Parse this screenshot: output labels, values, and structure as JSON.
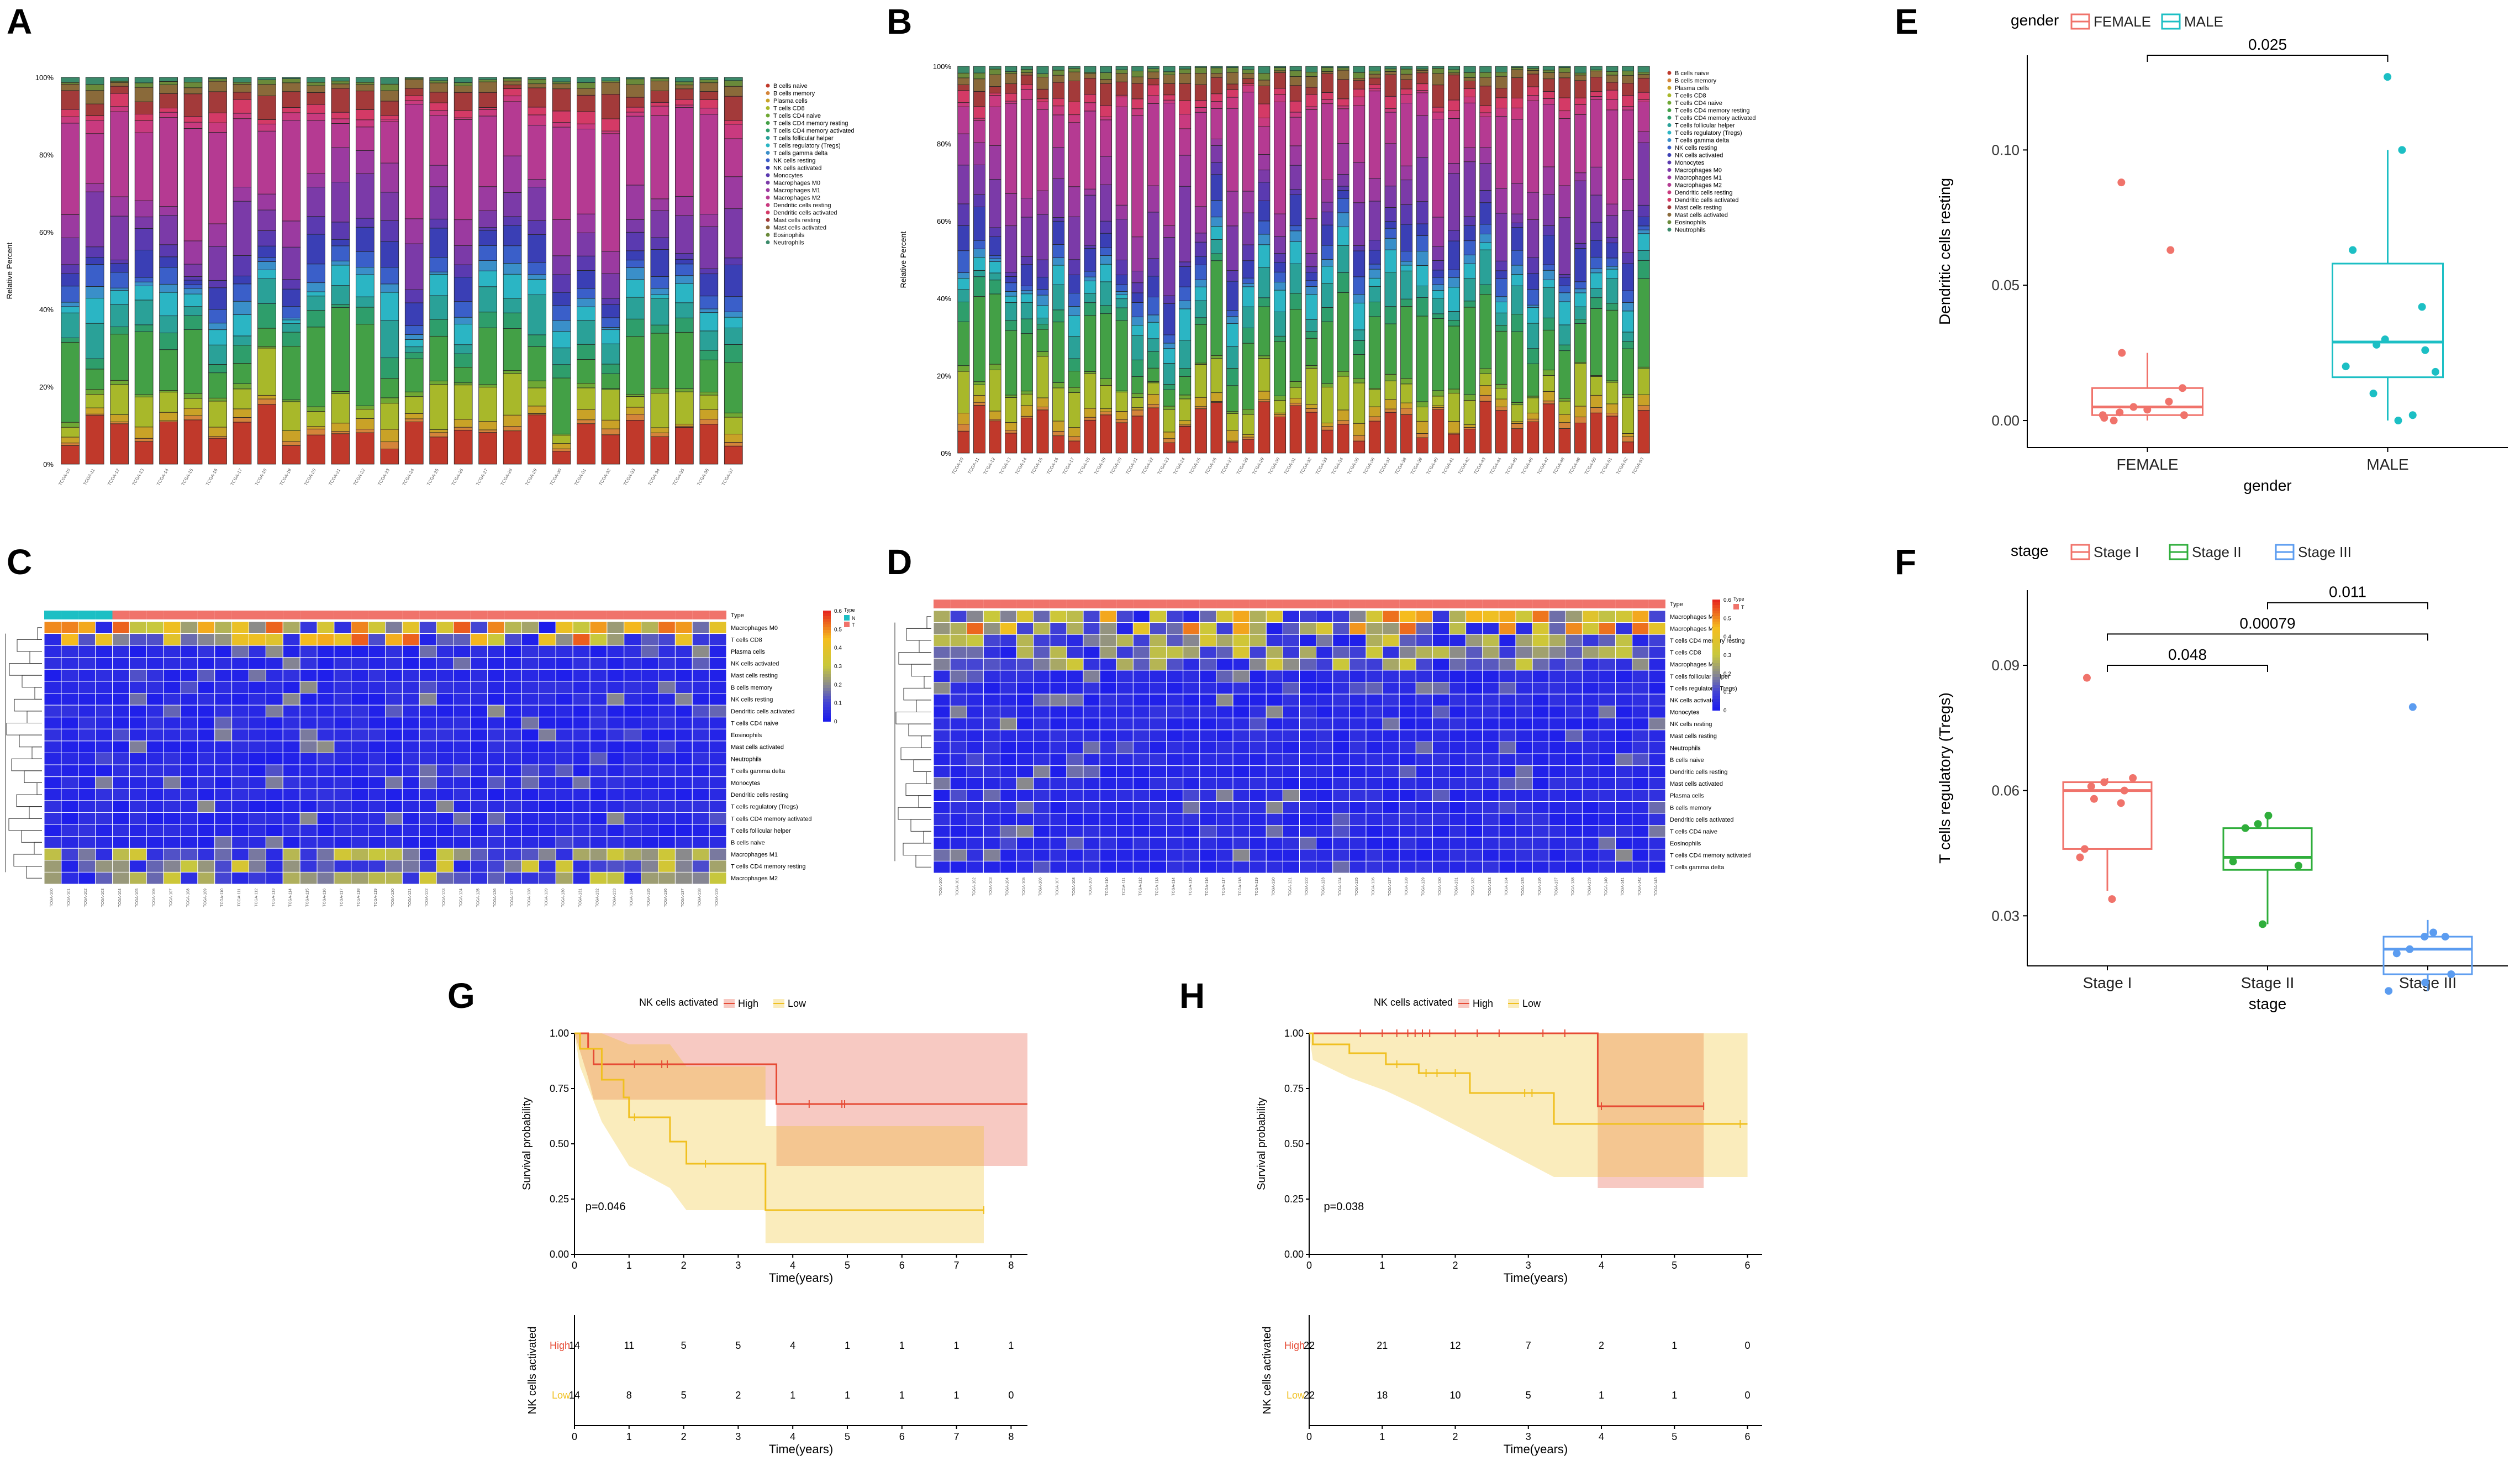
{
  "panel_labels": [
    "A",
    "B",
    "C",
    "D",
    "E",
    "F",
    "G",
    "H"
  ],
  "colors": {
    "female": "#f0736b",
    "male": "#1cbfc4",
    "stage1": "#f0736b",
    "stage2": "#2fae3b",
    "stage3": "#5b9cf0",
    "km_high": "#e64b35",
    "km_low": "#f0c020",
    "cells": [
      "#c0392b",
      "#d4843a",
      "#c9a227",
      "#a8b82a",
      "#6fa834",
      "#43a046",
      "#2e9e6b",
      "#2aa198",
      "#2bb5c4",
      "#3a8fc9",
      "#3a5fc9",
      "#3a3fb5",
      "#5a3ab0",
      "#7b3aa8",
      "#9b3aa0",
      "#b53a92",
      "#c93a7f",
      "#d43a66",
      "#a33a3a",
      "#8a6a3a",
      "#6a8a3a",
      "#3a8a6a"
    ]
  },
  "chart_data": [
    {
      "id": "A",
      "type": "bar",
      "subtype": "stacked-percent",
      "ylabel": "Relative Percent",
      "yticks": [
        "0%",
        "20%",
        "40%",
        "60%",
        "80%",
        "100%"
      ],
      "n_samples": 28,
      "legend": [
        "B cells naive",
        "B cells memory",
        "Plasma cells",
        "T cells CD8",
        "T cells CD4 naive",
        "T cells CD4 memory resting",
        "T cells CD4 memory activated",
        "T cells follicular helper",
        "T cells regulatory (Tregs)",
        "T cells gamma delta",
        "NK cells resting",
        "NK cells activated",
        "Monocytes",
        "Macrophages M0",
        "Macrophages M1",
        "Macrophages M2",
        "Dendritic cells resting",
        "Dendritic cells activated",
        "Mast cells resting",
        "Mast cells activated",
        "Eosinophils",
        "Neutrophils"
      ]
    },
    {
      "id": "B",
      "type": "bar",
      "subtype": "stacked-percent",
      "ylabel": "Relative Percent",
      "yticks": [
        "0%",
        "20%",
        "40%",
        "60%",
        "80%",
        "100%"
      ],
      "n_samples": 44,
      "legend": [
        "B cells naive",
        "B cells memory",
        "Plasma cells",
        "T cells CD8",
        "T cells CD4 naive",
        "T cells CD4 memory resting",
        "T cells CD4 memory activated",
        "T cells follicular helper",
        "T cells regulatory (Tregs)",
        "T cells gamma delta",
        "NK cells resting",
        "NK cells activated",
        "Monocytes",
        "Macrophages M0",
        "Macrophages M1",
        "Macrophages M2",
        "Dendritic cells resting",
        "Dendritic cells activated",
        "Mast cells resting",
        "Mast cells activated",
        "Eosinophils",
        "Neutrophils"
      ]
    },
    {
      "id": "C",
      "type": "heatmap",
      "annotation_title": "Type",
      "annotation_legend": [
        "N",
        "T"
      ],
      "scale": [
        "0.6",
        "0.5",
        "0.4",
        "0.3",
        "0.2",
        "0.1",
        "0"
      ],
      "n_cols": 40,
      "rows": [
        "Macrophages M0",
        "T cells CD8",
        "Plasma cells",
        "NK cells activated",
        "Mast cells resting",
        "B cells memory",
        "NK cells resting",
        "Dendritic cells activated",
        "T cells CD4 naive",
        "Eosinophils",
        "Mast cells activated",
        "Neutrophils",
        "T cells gamma delta",
        "Monocytes",
        "Dendritic cells resting",
        "T cells regulatory (Tregs)",
        "T cells CD4 memory activated",
        "T cells follicular helper",
        "B cells naive",
        "Macrophages M1",
        "T cells CD4 memory resting",
        "Macrophages M2"
      ]
    },
    {
      "id": "D",
      "type": "heatmap",
      "annotation_title": "Type",
      "annotation_legend": [
        "T"
      ],
      "scale": [
        "0.6",
        "0.5",
        "0.4",
        "0.3",
        "0.2",
        "0.1",
        "0"
      ],
      "n_cols": 44,
      "rows": [
        "Macrophages M2",
        "Macrophages M0",
        "T cells CD4 memory resting",
        "T cells CD8",
        "Macrophages M1",
        "T cells follicular helper",
        "T cells regulatory (Tregs)",
        "NK cells activated",
        "Monocytes",
        "NK cells resting",
        "Mast cells resting",
        "Neutrophils",
        "B cells naive",
        "Dendritic cells resting",
        "Mast cells activated",
        "Plasma cells",
        "B cells memory",
        "Dendritic cells activated",
        "T cells CD4 naive",
        "Eosinophils",
        "T cells CD4 memory activated",
        "T cells gamma delta"
      ]
    },
    {
      "id": "E",
      "type": "scatter",
      "subtype": "boxplot",
      "legend_title": "gender",
      "legend": [
        "FEMALE",
        "MALE"
      ],
      "categories": [
        "FEMALE",
        "MALE"
      ],
      "xlabel": "gender",
      "ylabel": "Dendritic cells resting",
      "ylim": [
        -0.01,
        0.135
      ],
      "yticks": [
        0.0,
        0.05,
        0.1
      ],
      "ytick_labels": [
        "0.00",
        "0.05",
        "0.10"
      ],
      "boxes": [
        {
          "name": "FEMALE",
          "q1": 0.002,
          "median": 0.005,
          "q3": 0.012,
          "wlow": 0.0,
          "whigh": 0.025
        },
        {
          "name": "MALE",
          "q1": 0.016,
          "median": 0.029,
          "q3": 0.058,
          "wlow": 0.0,
          "whigh": 0.1
        }
      ],
      "points": [
        {
          "group": "FEMALE",
          "values": [
            0.088,
            0.063,
            0.025,
            0.012,
            0.007,
            0.005,
            0.004,
            0.003,
            0.002,
            0.002,
            0.001,
            0.0
          ]
        },
        {
          "group": "MALE",
          "values": [
            0.127,
            0.1,
            0.063,
            0.042,
            0.03,
            0.028,
            0.026,
            0.02,
            0.018,
            0.01,
            0.002,
            0.0
          ]
        }
      ],
      "comparisons": [
        {
          "pair": [
            "FEMALE",
            "MALE"
          ],
          "p": "0.025",
          "y": 0.135
        }
      ]
    },
    {
      "id": "F",
      "type": "scatter",
      "subtype": "boxplot",
      "legend_title": "stage",
      "legend": [
        "Stage I",
        "Stage II",
        "Stage III"
      ],
      "categories": [
        "Stage I",
        "Stage II",
        "Stage III"
      ],
      "xlabel": "stage",
      "ylabel": "T cells regulatory (Tregs)",
      "ylim": [
        0.018,
        0.108
      ],
      "yticks": [
        0.03,
        0.06,
        0.09
      ],
      "ytick_labels": [
        "0.03",
        "0.06",
        "0.09"
      ],
      "boxes": [
        {
          "name": "Stage I",
          "q1": 0.046,
          "median": 0.06,
          "q3": 0.062,
          "wlow": 0.036,
          "whigh": 0.063
        },
        {
          "name": "Stage II",
          "q1": 0.041,
          "median": 0.044,
          "q3": 0.051,
          "wlow": 0.028,
          "whigh": 0.054
        },
        {
          "name": "Stage III",
          "q1": 0.016,
          "median": 0.022,
          "q3": 0.025,
          "wlow": 0.012,
          "whigh": 0.029
        }
      ],
      "points": [
        {
          "group": "Stage I",
          "values": [
            0.087,
            0.063,
            0.062,
            0.061,
            0.06,
            0.058,
            0.057,
            0.046,
            0.044,
            0.034
          ]
        },
        {
          "group": "Stage II",
          "values": [
            0.054,
            0.052,
            0.051,
            0.043,
            0.042,
            0.028
          ]
        },
        {
          "group": "Stage III",
          "values": [
            0.08,
            0.026,
            0.025,
            0.025,
            0.022,
            0.021,
            0.016,
            0.014,
            0.012
          ]
        }
      ],
      "comparisons": [
        {
          "pair": [
            "Stage II",
            "Stage III"
          ],
          "p": "0.011",
          "y": 0.105
        },
        {
          "pair": [
            "Stage I",
            "Stage III"
          ],
          "p": "0.00079",
          "y": 0.0975
        },
        {
          "pair": [
            "Stage I",
            "Stage II"
          ],
          "p": "0.048",
          "y": 0.09
        }
      ]
    },
    {
      "id": "G",
      "type": "line",
      "subtype": "kaplan-meier",
      "legend_title": "NK cells activated",
      "legend": [
        "High",
        "Low"
      ],
      "xlabel": "Time(years)",
      "ylabel": "Survival probability",
      "xlim": [
        0,
        8.3
      ],
      "ylim": [
        0,
        1
      ],
      "xticks": [
        0,
        1,
        2,
        3,
        4,
        5,
        6,
        7,
        8
      ],
      "yticks": [
        "0.00",
        "0.25",
        "0.50",
        "0.75",
        "1.00"
      ],
      "pvalue": "p=0.046",
      "series": [
        {
          "name": "High",
          "steps": [
            [
              0,
              1.0
            ],
            [
              0.25,
              0.93
            ],
            [
              0.35,
              0.86
            ],
            [
              3.7,
              0.86
            ],
            [
              3.7,
              0.68
            ],
            [
              8.3,
              0.68
            ]
          ],
          "ci_upper": [
            [
              0,
              1.0
            ],
            [
              0.35,
              1.0
            ],
            [
              3.7,
              1.0
            ],
            [
              8.3,
              1.0
            ]
          ],
          "ci_lower": [
            [
              0,
              1.0
            ],
            [
              0.25,
              0.8
            ],
            [
              0.35,
              0.7
            ],
            [
              3.7,
              0.7
            ],
            [
              3.7,
              0.4
            ],
            [
              8.3,
              0.4
            ]
          ],
          "censor": [
            [
              1.1,
              0.86
            ],
            [
              1.6,
              0.86
            ],
            [
              1.7,
              0.86
            ],
            [
              4.3,
              0.68
            ],
            [
              4.9,
              0.68
            ],
            [
              4.95,
              0.68
            ]
          ]
        },
        {
          "name": "Low",
          "steps": [
            [
              0,
              1.0
            ],
            [
              0.1,
              0.93
            ],
            [
              0.5,
              0.79
            ],
            [
              0.9,
              0.71
            ],
            [
              1.0,
              0.62
            ],
            [
              1.75,
              0.62
            ],
            [
              1.75,
              0.51
            ],
            [
              2.05,
              0.51
            ],
            [
              2.05,
              0.41
            ],
            [
              3.5,
              0.41
            ],
            [
              3.5,
              0.2
            ],
            [
              7.5,
              0.2
            ]
          ],
          "ci_upper": [
            [
              0,
              1.0
            ],
            [
              0.5,
              1.0
            ],
            [
              1.0,
              0.95
            ],
            [
              1.75,
              0.95
            ],
            [
              2.05,
              0.85
            ],
            [
              3.5,
              0.85
            ],
            [
              3.5,
              0.58
            ],
            [
              7.5,
              0.58
            ]
          ],
          "ci_lower": [
            [
              0,
              1.0
            ],
            [
              0.1,
              0.85
            ],
            [
              0.5,
              0.6
            ],
            [
              1.0,
              0.4
            ],
            [
              1.75,
              0.3
            ],
            [
              2.05,
              0.2
            ],
            [
              3.5,
              0.2
            ],
            [
              3.5,
              0.05
            ],
            [
              7.5,
              0.05
            ]
          ],
          "censor": [
            [
              1.1,
              0.62
            ],
            [
              2.4,
              0.41
            ],
            [
              7.5,
              0.2
            ]
          ]
        }
      ],
      "risk_table": {
        "ylabel": "NK cells activated",
        "xlabel": "Time(years)",
        "rows": [
          {
            "name": "High",
            "values": [
              "14",
              "11",
              "5",
              "5",
              "4",
              "1",
              "1",
              "1",
              "1"
            ]
          },
          {
            "name": "Low",
            "values": [
              "14",
              "8",
              "5",
              "2",
              "1",
              "1",
              "1",
              "1",
              "0"
            ]
          }
        ]
      }
    },
    {
      "id": "H",
      "type": "line",
      "subtype": "kaplan-meier",
      "legend_title": "NK cells activated",
      "legend": [
        "High",
        "Low"
      ],
      "xlabel": "Time(years)",
      "ylabel": "Survival probability",
      "xlim": [
        0,
        6.2
      ],
      "ylim": [
        0,
        1
      ],
      "xticks": [
        0,
        1,
        2,
        3,
        4,
        5,
        6
      ],
      "yticks": [
        "0.00",
        "0.25",
        "0.50",
        "0.75",
        "1.00"
      ],
      "pvalue": "p=0.038",
      "series": [
        {
          "name": "High",
          "steps": [
            [
              0,
              1.0
            ],
            [
              3.95,
              1.0
            ],
            [
              3.95,
              0.67
            ],
            [
              5.4,
              0.67
            ]
          ],
          "ci_upper": [
            [
              0,
              1.0
            ],
            [
              5.4,
              1.0
            ]
          ],
          "ci_lower": [
            [
              0,
              1.0
            ],
            [
              3.95,
              1.0
            ],
            [
              3.95,
              0.3
            ],
            [
              5.4,
              0.3
            ]
          ],
          "censor": [
            [
              0.7,
              1.0
            ],
            [
              1.0,
              1.0
            ],
            [
              1.2,
              1.0
            ],
            [
              1.35,
              1.0
            ],
            [
              1.45,
              1.0
            ],
            [
              1.55,
              1.0
            ],
            [
              1.65,
              1.0
            ],
            [
              2.0,
              1.0
            ],
            [
              2.3,
              1.0
            ],
            [
              2.6,
              1.0
            ],
            [
              3.2,
              1.0
            ],
            [
              3.5,
              1.0
            ],
            [
              4.0,
              0.67
            ],
            [
              5.4,
              0.67
            ]
          ]
        },
        {
          "name": "Low",
          "steps": [
            [
              0,
              1.0
            ],
            [
              0.05,
              0.95
            ],
            [
              0.55,
              0.95
            ],
            [
              0.55,
              0.91
            ],
            [
              1.05,
              0.91
            ],
            [
              1.05,
              0.86
            ],
            [
              1.5,
              0.86
            ],
            [
              1.5,
              0.82
            ],
            [
              2.2,
              0.82
            ],
            [
              2.2,
              0.73
            ],
            [
              3.35,
              0.73
            ],
            [
              3.35,
              0.59
            ],
            [
              6.0,
              0.59
            ]
          ],
          "ci_upper": [
            [
              0,
              1.0
            ],
            [
              3.35,
              1.0
            ],
            [
              6.0,
              1.0
            ]
          ],
          "ci_lower": [
            [
              0,
              1.0
            ],
            [
              0.05,
              0.88
            ],
            [
              0.55,
              0.8
            ],
            [
              1.05,
              0.74
            ],
            [
              1.5,
              0.67
            ],
            [
              2.2,
              0.55
            ],
            [
              3.35,
              0.35
            ],
            [
              6.0,
              0.35
            ]
          ],
          "censor": [
            [
              1.2,
              0.86
            ],
            [
              1.6,
              0.82
            ],
            [
              1.75,
              0.82
            ],
            [
              2.0,
              0.82
            ],
            [
              2.95,
              0.73
            ],
            [
              3.05,
              0.73
            ],
            [
              5.9,
              0.59
            ]
          ]
        }
      ],
      "risk_table": {
        "ylabel": "NK cells activated",
        "xlabel": "Time(years)",
        "rows": [
          {
            "name": "High",
            "values": [
              "22",
              "21",
              "12",
              "7",
              "2",
              "1",
              "0"
            ]
          },
          {
            "name": "Low",
            "values": [
              "22",
              "18",
              "10",
              "5",
              "1",
              "1",
              "0"
            ]
          }
        ]
      }
    }
  ]
}
